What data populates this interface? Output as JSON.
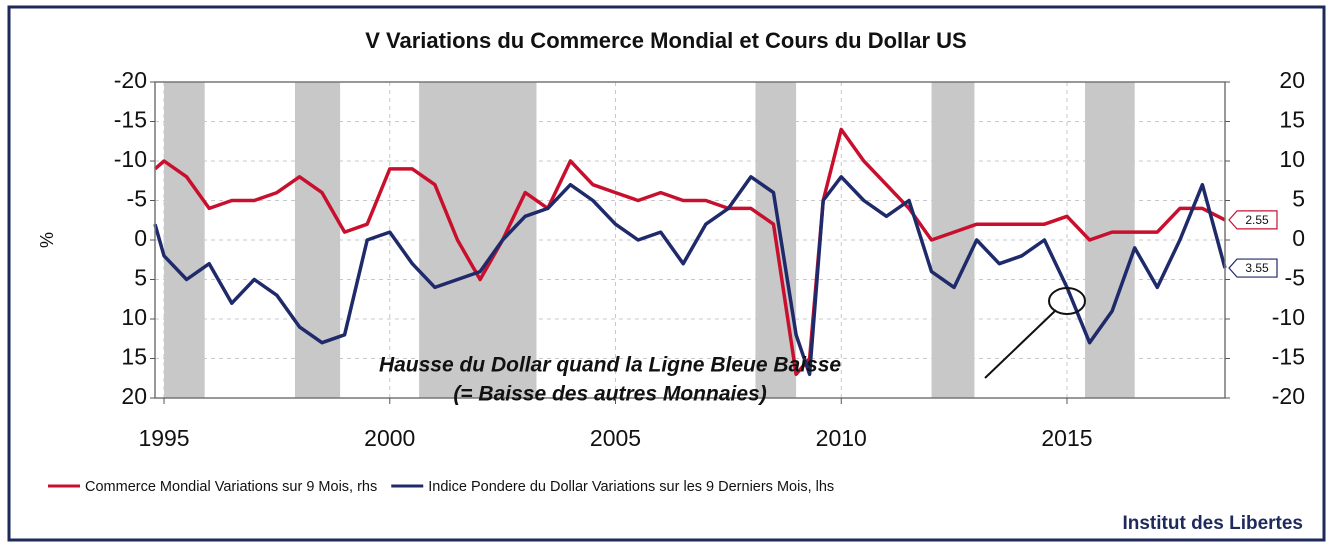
{
  "chart_data": {
    "type": "line",
    "title": "V Variations du Commerce Mondial et Cours du Dollar US",
    "y_label": "%",
    "annotation": [
      "Hausse du Dollar quand la Ligne Bleue Baisse",
      "(= Baisse des autres Monnaies)"
    ],
    "source": "Institut des Libertes",
    "x": [
      1994.8,
      1995.0,
      1995.5,
      1996.0,
      1996.5,
      1997.0,
      1997.5,
      1998.0,
      1998.5,
      1999.0,
      1999.5,
      2000.0,
      2000.5,
      2001.0,
      2001.5,
      2002.0,
      2002.5,
      2003.0,
      2003.5,
      2004.0,
      2004.5,
      2005.0,
      2005.5,
      2006.0,
      2006.5,
      2007.0,
      2007.5,
      2008.0,
      2008.5,
      2009.0,
      2009.3,
      2009.6,
      2010.0,
      2010.5,
      2011.0,
      2011.5,
      2012.0,
      2012.5,
      2013.0,
      2013.5,
      2014.0,
      2014.5,
      2015.0,
      2015.5,
      2016.0,
      2016.5,
      2017.0,
      2017.5,
      2018.0,
      2018.5
    ],
    "xlim": [
      1994.8,
      2018.5
    ],
    "xticks": [
      1995,
      2000,
      2005,
      2010,
      2015
    ],
    "ylim": [
      20,
      -20
    ],
    "yticks": [
      -20,
      -15,
      -10,
      -5,
      0,
      5,
      10,
      15,
      20
    ],
    "y2lim": [
      -20,
      20
    ],
    "y2ticks": [
      20,
      15,
      10,
      5,
      0,
      -5,
      -10,
      -15,
      -20
    ],
    "grid": true,
    "shaded_periods": [
      [
        1995.0,
        1995.9
      ],
      [
        1997.9,
        1998.9
      ],
      [
        2000.65,
        2003.25
      ],
      [
        2008.1,
        2009.0
      ],
      [
        2012.0,
        2012.95
      ],
      [
        2015.4,
        2016.5
      ]
    ],
    "shade_color": "#c8c8c8",
    "series": [
      {
        "name": "Commerce Mondial Variations sur 9 Mois, rhs",
        "color": "#c8102e",
        "axis": "y2",
        "end_label": "2.55",
        "values": [
          9,
          10,
          8,
          4,
          5,
          5,
          6,
          8,
          6,
          1,
          2,
          9,
          9,
          7,
          0,
          -5,
          0,
          6,
          4,
          10,
          7,
          6,
          5,
          6,
          5,
          5,
          4,
          4,
          2,
          -17,
          -15,
          5,
          14,
          10,
          7,
          4,
          0,
          1,
          2,
          2,
          2,
          2,
          3,
          0,
          1,
          1,
          1,
          4,
          4,
          2.55
        ]
      },
      {
        "name": "Indice Pondere du Dollar Variations sur les 9 Derniers Mois, lhs",
        "color": "#1f2a6b",
        "axis": "y",
        "end_label": "3.55",
        "values": [
          -2,
          2,
          5,
          3,
          8,
          5,
          7,
          11,
          13,
          12,
          0,
          -1,
          3,
          6,
          5,
          4,
          0,
          -3,
          -4,
          -7,
          -5,
          -2,
          0,
          -1,
          3,
          -2,
          -4,
          -8,
          -6,
          12,
          17,
          -5,
          -8,
          -5,
          -3,
          -5,
          4,
          6,
          0,
          3,
          2,
          0,
          6,
          13,
          9,
          1,
          6,
          0,
          -7,
          3.55
        ]
      }
    ]
  }
}
